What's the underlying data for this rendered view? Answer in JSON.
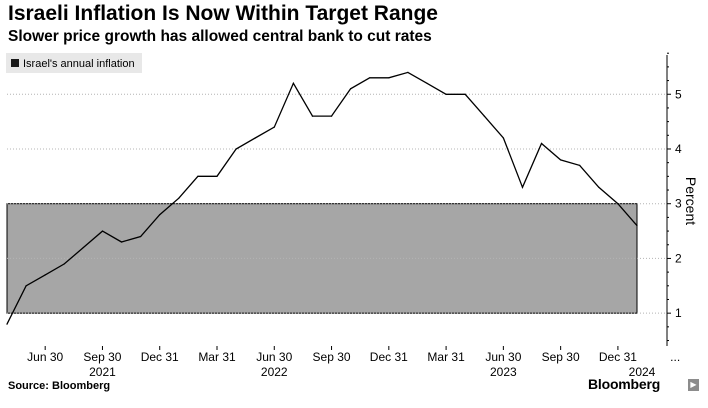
{
  "title": "Israeli Inflation Is Now Within Target Range",
  "subtitle": "Slower price growth has allowed central bank to cut rates",
  "source": "Source: Bloomberg",
  "brand": "Bloomberg",
  "colors": {
    "line": "#000000",
    "target_band": "#a6a6a6",
    "legend_bg": "#e8e8e8",
    "gridline": "#b4b4b4"
  },
  "chart_data": {
    "type": "line",
    "title": "Israeli Inflation Is Now Within Target Range",
    "subtitle": "Slower price growth has allowed central bank to cut rates",
    "ylabel": "Percent",
    "ylim": [
      0.4,
      5.9
    ],
    "yticks": [
      1,
      2,
      3,
      4,
      5
    ],
    "grid": true,
    "legend_position": "top-left",
    "target_range": [
      1,
      3
    ],
    "x_tick_labels": [
      "Jun 30",
      "Sep 30",
      "Dec 31",
      "Mar 31",
      "Jun 30",
      "Sep 30",
      "Dec 31",
      "Mar 31",
      "Jun 30",
      "Sep 30",
      "Dec 31",
      "..."
    ],
    "year_labels": [
      "2021",
      "2022",
      "2023",
      "2024"
    ],
    "series": [
      {
        "name": "Israel's annual inflation",
        "x": [
          "2021-04",
          "2021-05",
          "2021-06",
          "2021-07",
          "2021-08",
          "2021-09",
          "2021-10",
          "2021-11",
          "2021-12",
          "2022-01",
          "2022-02",
          "2022-03",
          "2022-04",
          "2022-05",
          "2022-06",
          "2022-07",
          "2022-08",
          "2022-09",
          "2022-10",
          "2022-11",
          "2022-12",
          "2023-01",
          "2023-02",
          "2023-03",
          "2023-04",
          "2023-05",
          "2023-06",
          "2023-07",
          "2023-08",
          "2023-09",
          "2023-10",
          "2023-11",
          "2023-12",
          "2024-01"
        ],
        "values": [
          0.8,
          1.5,
          1.7,
          1.9,
          2.2,
          2.5,
          2.3,
          2.4,
          2.8,
          3.1,
          3.5,
          3.5,
          4.0,
          4.2,
          4.4,
          5.2,
          4.6,
          4.6,
          5.1,
          5.3,
          5.3,
          5.4,
          5.2,
          5.0,
          5.0,
          4.6,
          4.2,
          3.3,
          4.1,
          3.8,
          3.7,
          3.3,
          3.0,
          2.6
        ]
      }
    ]
  }
}
